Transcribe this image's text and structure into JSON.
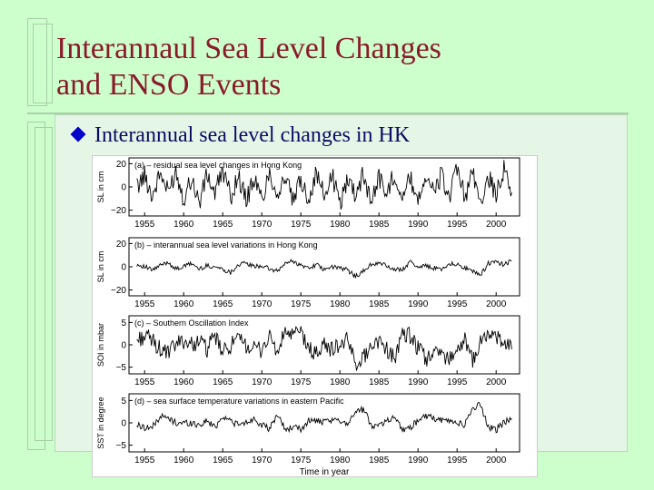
{
  "slide": {
    "title_line1": "Interannaul Sea Level Changes",
    "title_line2": "and ENSO Events",
    "bullet": "Interannual sea level changes in HK",
    "bullet_icon": "diamond-bullet-icon",
    "colors": {
      "background": "#ccffcc",
      "title": "#8b1a2b",
      "bullet_text": "#0b0b63",
      "bullet_marker": "#0000cc"
    }
  },
  "chart_data": [
    {
      "type": "line",
      "title": "(a) – residual sea level changes in Hong Kong",
      "ylabel": "SL in cm",
      "xlabel": "",
      "yticks": [
        20,
        0,
        -20
      ],
      "ylim": [
        -25,
        25
      ],
      "xticks": [
        1955,
        1960,
        1965,
        1970,
        1975,
        1980,
        1985,
        1990,
        1995,
        2000
      ],
      "xlim": [
        1953,
        2003
      ],
      "x": [
        1954,
        1955,
        1956,
        1957,
        1958,
        1959,
        1960,
        1961,
        1962,
        1963,
        1964,
        1965,
        1966,
        1967,
        1968,
        1969,
        1970,
        1971,
        1972,
        1973,
        1974,
        1975,
        1976,
        1977,
        1978,
        1979,
        1980,
        1981,
        1982,
        1983,
        1984,
        1985,
        1986,
        1987,
        1988,
        1989,
        1990,
        1991,
        1992,
        1993,
        1994,
        1995,
        1996,
        1997,
        1998,
        1999,
        2000,
        2001,
        2002
      ],
      "series": [
        {
          "values": [
            0,
            10,
            -8,
            12,
            -5,
            14,
            -10,
            8,
            -14,
            11,
            -6,
            15,
            -9,
            10,
            -12,
            7,
            -11,
            13,
            -7,
            9,
            -13,
            6,
            -10,
            12,
            -8,
            10,
            -15,
            8,
            -6,
            11,
            -12,
            9,
            -7,
            13,
            -10,
            8,
            -11,
            12,
            -6,
            10,
            -9,
            14,
            -8,
            11,
            -13,
            9,
            -7,
            15,
            -5
          ]
        }
      ]
    },
    {
      "type": "line",
      "title": "(b) – interannual sea level variations in Hong Kong",
      "ylabel": "SL in cm",
      "xlabel": "",
      "yticks": [
        20,
        0,
        -20
      ],
      "ylim": [
        -25,
        25
      ],
      "xticks": [
        1955,
        1960,
        1965,
        1970,
        1975,
        1980,
        1985,
        1990,
        1995,
        2000
      ],
      "xlim": [
        1953,
        2003
      ],
      "x": [
        1954,
        1955,
        1956,
        1957,
        1958,
        1959,
        1960,
        1961,
        1962,
        1963,
        1964,
        1965,
        1966,
        1967,
        1968,
        1969,
        1970,
        1971,
        1972,
        1973,
        1974,
        1975,
        1976,
        1977,
        1978,
        1979,
        1980,
        1981,
        1982,
        1983,
        1984,
        1985,
        1986,
        1987,
        1988,
        1989,
        1990,
        1991,
        1992,
        1993,
        1994,
        1995,
        1996,
        1997,
        1998,
        1999,
        2000,
        2001,
        2002
      ],
      "series": [
        {
          "values": [
            2,
            0,
            -3,
            1,
            4,
            -2,
            0,
            3,
            -2,
            1,
            0,
            -2,
            -5,
            2,
            3,
            0,
            1,
            -2,
            -4,
            3,
            5,
            1,
            -1,
            2,
            -3,
            0,
            -1,
            -3,
            -8,
            -4,
            2,
            3,
            1,
            -3,
            -2,
            4,
            0,
            1,
            -1,
            -2,
            3,
            2,
            -1,
            -4,
            -7,
            3,
            4,
            2,
            5
          ]
        }
      ]
    },
    {
      "type": "line",
      "title": "(c) – Southern Oscillation Index",
      "ylabel": "SOI in mbar",
      "xlabel": "",
      "yticks": [
        5,
        0,
        -5
      ],
      "ylim": [
        -6.5,
        6.5
      ],
      "xticks": [
        1955,
        1960,
        1965,
        1970,
        1975,
        1980,
        1985,
        1990,
        1995,
        2000
      ],
      "xlim": [
        1953,
        2003
      ],
      "x": [
        1954,
        1955,
        1956,
        1957,
        1958,
        1959,
        1960,
        1961,
        1962,
        1963,
        1964,
        1965,
        1966,
        1967,
        1968,
        1969,
        1970,
        1971,
        1972,
        1973,
        1974,
        1975,
        1976,
        1977,
        1978,
        1979,
        1980,
        1981,
        1982,
        1983,
        1984,
        1985,
        1986,
        1987,
        1988,
        1989,
        1990,
        1991,
        1992,
        1993,
        1994,
        1995,
        1996,
        1997,
        1998,
        1999,
        2000,
        2001,
        2002
      ],
      "series": [
        {
          "values": [
            1,
            2,
            1,
            -1,
            -2,
            0,
            1,
            0,
            1,
            -1,
            2,
            -2,
            0,
            1,
            0,
            -1,
            -1,
            2,
            -2,
            3,
            2,
            3,
            -1,
            -2,
            0,
            -1,
            0,
            1,
            -4,
            -3,
            0,
            1,
            -1,
            -3,
            2,
            2,
            -1,
            -3,
            -2,
            -2,
            -3,
            -1,
            1,
            -4,
            1,
            2,
            2,
            0,
            -1
          ]
        }
      ]
    },
    {
      "type": "line",
      "title": "(d) – sea surface temperature variations in eastern Pacific",
      "ylabel": "SST in degree",
      "xlabel": "Time in year",
      "yticks": [
        5,
        0,
        -5
      ],
      "ylim": [
        -6.5,
        6.5
      ],
      "xticks": [
        1955,
        1960,
        1965,
        1970,
        1975,
        1980,
        1985,
        1990,
        1995,
        2000
      ],
      "xlim": [
        1953,
        2003
      ],
      "x": [
        1954,
        1955,
        1956,
        1957,
        1958,
        1959,
        1960,
        1961,
        1962,
        1963,
        1964,
        1965,
        1966,
        1967,
        1968,
        1969,
        1970,
        1971,
        1972,
        1973,
        1974,
        1975,
        1976,
        1977,
        1978,
        1979,
        1980,
        1981,
        1982,
        1983,
        1984,
        1985,
        1986,
        1987,
        1988,
        1989,
        1990,
        1991,
        1992,
        1993,
        1994,
        1995,
        1996,
        1997,
        1998,
        1999,
        2000,
        2001,
        2002
      ],
      "series": [
        {
          "values": [
            -0.5,
            -1,
            -1,
            1.5,
            1,
            0,
            0,
            0,
            -0.5,
            0.5,
            -1,
            1.5,
            0.5,
            -0.5,
            0,
            1,
            -0.5,
            -1.5,
            2,
            -1.5,
            -1,
            -1.5,
            0.5,
            0.5,
            0,
            0.5,
            0.5,
            0,
            2.5,
            3,
            -0.5,
            -0.5,
            0.5,
            1.5,
            -1.5,
            -1,
            0.5,
            1.5,
            1,
            0.5,
            0.5,
            0,
            -0.5,
            3.5,
            4,
            -1,
            -1.5,
            0,
            1
          ]
        }
      ]
    }
  ]
}
